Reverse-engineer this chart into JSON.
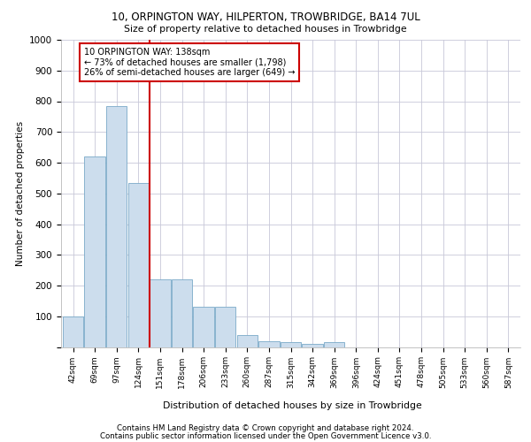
{
  "title1": "10, ORPINGTON WAY, HILPERTON, TROWBRIDGE, BA14 7UL",
  "title2": "Size of property relative to detached houses in Trowbridge",
  "xlabel": "Distribution of detached houses by size in Trowbridge",
  "ylabel": "Number of detached properties",
  "categories": [
    "42sqm",
    "69sqm",
    "97sqm",
    "124sqm",
    "151sqm",
    "178sqm",
    "206sqm",
    "233sqm",
    "260sqm",
    "287sqm",
    "315sqm",
    "342sqm",
    "369sqm",
    "396sqm",
    "424sqm",
    "451sqm",
    "478sqm",
    "505sqm",
    "533sqm",
    "560sqm",
    "587sqm"
  ],
  "values": [
    100,
    620,
    785,
    535,
    220,
    220,
    130,
    130,
    40,
    20,
    15,
    10,
    15,
    0,
    0,
    0,
    0,
    0,
    0,
    0,
    0
  ],
  "bar_color": "#ccdded",
  "bar_edge_color": "#7aaac8",
  "vline_x": 3.5,
  "vline_color": "#cc0000",
  "annotation_text": "10 ORPINGTON WAY: 138sqm\n← 73% of detached houses are smaller (1,798)\n26% of semi-detached houses are larger (649) →",
  "annotation_box_color": "#ffffff",
  "annotation_box_edge": "#cc0000",
  "ylim": [
    0,
    1000
  ],
  "yticks": [
    0,
    100,
    200,
    300,
    400,
    500,
    600,
    700,
    800,
    900,
    1000
  ],
  "footer1": "Contains HM Land Registry data © Crown copyright and database right 2024.",
  "footer2": "Contains public sector information licensed under the Open Government Licence v3.0.",
  "bg_color": "#ffffff",
  "grid_color": "#c8c8d8"
}
